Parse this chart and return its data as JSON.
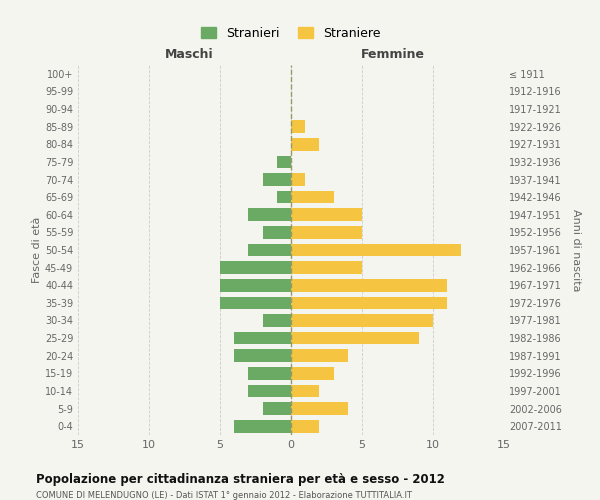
{
  "age_groups": [
    "0-4",
    "5-9",
    "10-14",
    "15-19",
    "20-24",
    "25-29",
    "30-34",
    "35-39",
    "40-44",
    "45-49",
    "50-54",
    "55-59",
    "60-64",
    "65-69",
    "70-74",
    "75-79",
    "80-84",
    "85-89",
    "90-94",
    "95-99",
    "100+"
  ],
  "birth_years": [
    "2007-2011",
    "2002-2006",
    "1997-2001",
    "1992-1996",
    "1987-1991",
    "1982-1986",
    "1977-1981",
    "1972-1976",
    "1967-1971",
    "1962-1966",
    "1957-1961",
    "1952-1956",
    "1947-1951",
    "1942-1946",
    "1937-1941",
    "1932-1936",
    "1927-1931",
    "1922-1926",
    "1917-1921",
    "1912-1916",
    "≤ 1911"
  ],
  "maschi": [
    4,
    2,
    3,
    3,
    4,
    4,
    2,
    5,
    5,
    5,
    3,
    2,
    3,
    1,
    2,
    1,
    0,
    0,
    0,
    0,
    0
  ],
  "femmine": [
    2,
    4,
    2,
    3,
    4,
    9,
    10,
    11,
    11,
    5,
    12,
    5,
    5,
    3,
    1,
    0,
    2,
    1,
    0,
    0,
    0
  ],
  "maschi_color": "#6aaa64",
  "femmine_color": "#f5c542",
  "title": "Popolazione per cittadinanza straniera per età e sesso - 2012",
  "subtitle": "COMUNE DI MELENDUGNO (LE) - Dati ISTAT 1° gennaio 2012 - Elaborazione TUTTITALIA.IT",
  "ylabel_left": "Fasce di età",
  "ylabel_right": "Anni di nascita",
  "label_maschi": "Maschi",
  "label_femmine": "Femmine",
  "legend_stranieri": "Stranieri",
  "legend_straniere": "Straniere",
  "xlim": 15,
  "bg_color": "#f5f5f0",
  "grid_color": "#cccccc"
}
